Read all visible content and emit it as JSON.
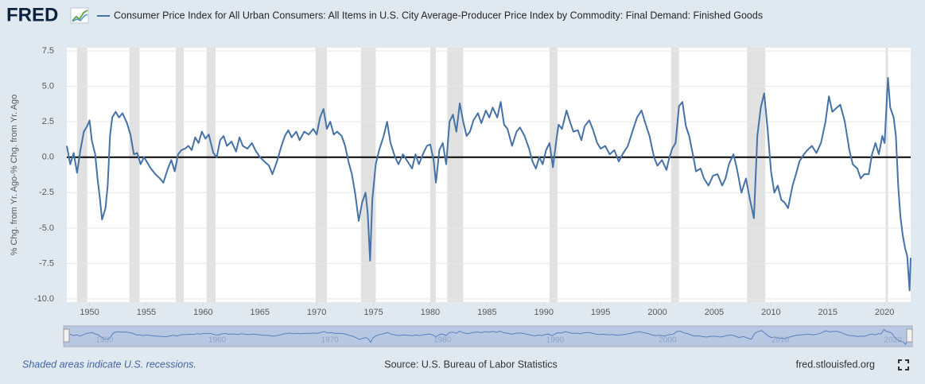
{
  "header": {
    "logo": "FRED"
  },
  "chart_data": {
    "type": "line",
    "y_label": "% Chg. from Yr. Ago-% Chg. from Yr. Ago",
    "x": [
      1948.0,
      1948.3,
      1948.6,
      1948.9,
      1949.2,
      1949.5,
      1949.8,
      1950.0,
      1950.2,
      1950.5,
      1950.7,
      1950.9,
      1951.1,
      1951.4,
      1951.6,
      1951.8,
      1952.0,
      1952.3,
      1952.6,
      1952.9,
      1953.3,
      1953.6,
      1953.9,
      1954.2,
      1954.5,
      1954.8,
      1955.1,
      1955.4,
      1955.8,
      1956.2,
      1956.5,
      1956.9,
      1957.2,
      1957.5,
      1957.8,
      1958.1,
      1958.4,
      1958.7,
      1959.0,
      1959.3,
      1959.6,
      1959.9,
      1960.2,
      1960.5,
      1960.9,
      1961.2,
      1961.5,
      1961.8,
      1962.1,
      1962.5,
      1962.9,
      1963.2,
      1963.5,
      1963.9,
      1964.3,
      1964.6,
      1965.0,
      1965.4,
      1965.8,
      1966.1,
      1966.5,
      1966.9,
      1967.2,
      1967.5,
      1967.8,
      1968.2,
      1968.5,
      1968.9,
      1969.3,
      1969.7,
      1970.0,
      1970.3,
      1970.6,
      1970.9,
      1971.2,
      1971.5,
      1971.8,
      1972.2,
      1972.5,
      1972.8,
      1973.1,
      1973.4,
      1973.7,
      1974.0,
      1974.3,
      1974.5,
      1974.7,
      1974.9,
      1975.2,
      1975.5,
      1975.9,
      1976.2,
      1976.5,
      1976.9,
      1977.2,
      1977.6,
      1978.0,
      1978.4,
      1978.7,
      1979.0,
      1979.4,
      1979.7,
      1980.0,
      1980.3,
      1980.5,
      1980.8,
      1981.1,
      1981.4,
      1981.7,
      1982.0,
      1982.3,
      1982.6,
      1982.9,
      1983.2,
      1983.5,
      1983.8,
      1984.2,
      1984.5,
      1984.9,
      1985.2,
      1985.5,
      1985.9,
      1986.2,
      1986.5,
      1986.8,
      1987.2,
      1987.6,
      1987.9,
      1988.3,
      1988.7,
      1989.0,
      1989.3,
      1989.6,
      1989.9,
      1990.2,
      1990.5,
      1990.8,
      1991.1,
      1991.3,
      1991.6,
      1992.0,
      1992.3,
      1992.6,
      1993.0,
      1993.3,
      1993.6,
      1994.0,
      1994.3,
      1994.7,
      1995.0,
      1995.4,
      1995.8,
      1996.2,
      1996.6,
      1997.0,
      1997.4,
      1997.8,
      1998.2,
      1998.6,
      1998.9,
      1999.3,
      1999.7,
      2000.0,
      2000.4,
      2000.8,
      2001.0,
      2001.3,
      2001.6,
      2001.9,
      2002.2,
      2002.5,
      2002.8,
      2003.1,
      2003.4,
      2003.8,
      2004.1,
      2004.5,
      2004.9,
      2005.3,
      2005.7,
      2006.0,
      2006.3,
      2006.7,
      2007.0,
      2007.4,
      2007.8,
      2008.1,
      2008.5,
      2008.8,
      2009.1,
      2009.4,
      2009.7,
      2010.0,
      2010.3,
      2010.6,
      2010.9,
      2011.2,
      2011.5,
      2011.9,
      2012.2,
      2012.5,
      2012.9,
      2013.2,
      2013.6,
      2014.0,
      2014.4,
      2014.8,
      2015.1,
      2015.4,
      2015.8,
      2016.1,
      2016.5,
      2016.9,
      2017.2,
      2017.6,
      2017.9,
      2018.2,
      2018.6,
      2018.9,
      2019.2,
      2019.5,
      2019.8,
      2020.0,
      2020.3,
      2020.5,
      2020.8,
      2021.0,
      2021.2,
      2021.4,
      2021.6,
      2021.8,
      2022.0,
      2022.2,
      2022.3
    ],
    "series": [
      {
        "name": "Consumer Price Index for All Urban Consumers: All Items in U.S. City Average-Producer Price Index by Commodity: Final Demand: Finished Goods",
        "color": "#4572a7",
        "values": [
          0.8,
          -0.5,
          0.3,
          -1.1,
          0.5,
          1.8,
          2.2,
          2.6,
          1.2,
          0.2,
          -1.5,
          -2.8,
          -4.4,
          -3.6,
          -2.0,
          1.5,
          2.8,
          3.2,
          2.8,
          3.1,
          2.4,
          1.6,
          0.2,
          0.3,
          -0.5,
          0.0,
          -0.4,
          -0.8,
          -1.2,
          -1.5,
          -1.8,
          -0.8,
          -0.2,
          -1.0,
          0.2,
          0.5,
          0.6,
          0.8,
          0.5,
          1.4,
          1.0,
          1.8,
          1.3,
          1.6,
          0.3,
          0.0,
          1.2,
          1.5,
          0.8,
          1.1,
          0.4,
          1.4,
          0.8,
          0.6,
          1.0,
          0.5,
          0.0,
          -0.3,
          -0.6,
          -1.2,
          -0.3,
          0.8,
          1.5,
          1.9,
          1.4,
          1.8,
          1.2,
          1.8,
          1.6,
          2.0,
          1.6,
          2.8,
          3.4,
          2.0,
          2.5,
          1.6,
          1.8,
          1.5,
          0.8,
          -0.3,
          -1.2,
          -2.6,
          -4.5,
          -3.2,
          -2.5,
          -4.0,
          -7.3,
          -3.0,
          -0.5,
          0.5,
          1.5,
          2.5,
          1.0,
          0.0,
          -0.5,
          0.2,
          -0.3,
          -0.8,
          0.2,
          -0.5,
          0.3,
          0.8,
          0.9,
          -0.2,
          -1.8,
          0.5,
          1.0,
          -0.5,
          2.5,
          3.0,
          1.8,
          3.8,
          2.5,
          1.5,
          1.8,
          2.6,
          3.1,
          2.4,
          3.3,
          2.8,
          3.5,
          2.8,
          3.9,
          2.3,
          2.0,
          0.8,
          1.8,
          2.1,
          1.5,
          0.6,
          -0.3,
          -0.8,
          0.0,
          -0.5,
          0.5,
          1.0,
          -0.7,
          1.2,
          2.3,
          2.0,
          3.3,
          2.5,
          1.8,
          1.9,
          1.2,
          2.2,
          2.6,
          2.0,
          1.0,
          0.6,
          0.8,
          0.2,
          0.5,
          -0.3,
          0.3,
          0.8,
          1.8,
          2.8,
          3.3,
          2.5,
          1.5,
          0.0,
          -0.6,
          -0.2,
          -0.9,
          -0.2,
          0.6,
          1.0,
          3.6,
          3.9,
          2.2,
          1.5,
          0.3,
          -1.0,
          -0.8,
          -1.5,
          -2.0,
          -1.3,
          -1.2,
          -2.0,
          -1.5,
          -0.5,
          0.2,
          -0.8,
          -2.5,
          -1.5,
          -2.8,
          -4.3,
          1.5,
          3.5,
          4.5,
          2.0,
          -1.0,
          -2.5,
          -2.0,
          -3.0,
          -3.2,
          -3.6,
          -2.0,
          -1.2,
          -0.3,
          0.2,
          0.5,
          0.8,
          0.3,
          1.0,
          2.5,
          4.3,
          3.2,
          3.5,
          3.7,
          2.5,
          0.5,
          -0.5,
          -0.8,
          -1.5,
          -1.2,
          -1.2,
          0.2,
          1.0,
          0.2,
          1.5,
          1.0,
          5.6,
          3.5,
          2.8,
          1.5,
          -2.0,
          -4.2,
          -5.5,
          -6.4,
          -7.0,
          -9.4,
          -7.1
        ]
      }
    ],
    "recessions": [
      [
        1948.9,
        1949.8
      ],
      [
        1953.5,
        1954.4
      ],
      [
        1957.6,
        1958.3
      ],
      [
        1960.3,
        1961.1
      ],
      [
        1969.9,
        1970.9
      ],
      [
        1973.9,
        1975.2
      ],
      [
        1980.0,
        1980.5
      ],
      [
        1981.5,
        1982.9
      ],
      [
        1990.5,
        1991.2
      ],
      [
        2001.2,
        2001.9
      ],
      [
        2007.9,
        2009.5
      ],
      [
        2020.1,
        2020.3
      ]
    ],
    "recession_color": "#e1e1e1",
    "xlim": [
      1948,
      2022.3
    ],
    "xticks": [
      1950,
      1955,
      1960,
      1965,
      1970,
      1975,
      1980,
      1985,
      1990,
      1995,
      2000,
      2005,
      2010,
      2015,
      2020
    ],
    "ylim": [
      -10,
      7.5
    ],
    "yticks": [
      {
        "value": -10,
        "label": "-10.0"
      },
      -7.5,
      {
        "value": -5,
        "label": "-5.0"
      },
      -2.5,
      {
        "value": 0,
        "label": "0.0"
      },
      2.5,
      {
        "value": 5,
        "label": "5.0"
      },
      7.5
    ],
    "grid": true
  },
  "footer": {
    "note": "Shaded areas indicate U.S. recessions.",
    "source": "Source: U.S. Bureau of Labor Statistics",
    "site": "fred.stlouisfed.org"
  }
}
